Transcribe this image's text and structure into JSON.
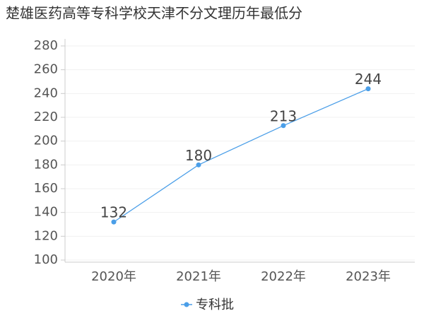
{
  "chart_data": {
    "type": "line",
    "title": "楚雄医药高等专科学校天津不分文理历年最低分",
    "categories": [
      "2020年",
      "2021年",
      "2022年",
      "2023年"
    ],
    "series": [
      {
        "name": "专科批",
        "color": "#4a9ee8",
        "values": [
          132,
          180,
          213,
          244
        ]
      }
    ],
    "ylim": [
      100,
      280
    ],
    "yticks": [
      100,
      120,
      140,
      160,
      180,
      200,
      220,
      240,
      260,
      280
    ],
    "grid": true,
    "legend": "bottom"
  }
}
